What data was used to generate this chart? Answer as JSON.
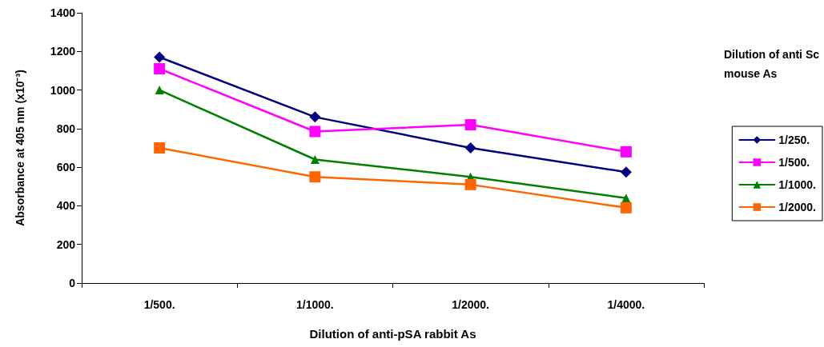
{
  "chart_data": {
    "type": "line",
    "xlabel": "Dilution of anti-pSA rabbit As",
    "ylabel": "Absorbance at 405 nm (x10⁻³)",
    "legend_title": "Dilution of anti Sc\nmouse As",
    "categories": [
      "1/500.",
      "1/1000.",
      "1/2000.",
      "1/4000."
    ],
    "ylim": [
      0,
      1400
    ],
    "yticks": [
      0,
      200,
      400,
      600,
      800,
      1000,
      1200,
      1400
    ],
    "grid": false,
    "legend": "right",
    "line_style": "solid",
    "series": [
      {
        "name": "1/250.",
        "color": "#000080",
        "marker": "diamond",
        "values": [
          1170,
          860,
          700,
          575
        ]
      },
      {
        "name": "1/500.",
        "color": "#ff00ff",
        "marker": "square",
        "values": [
          1110,
          785,
          820,
          680
        ]
      },
      {
        "name": "1/1000.",
        "color": "#008000",
        "marker": "triangle",
        "values": [
          1000,
          640,
          550,
          440
        ]
      },
      {
        "name": "1/2000.",
        "color": "#ff6600",
        "marker": "square",
        "values": [
          700,
          550,
          510,
          390
        ]
      }
    ]
  }
}
